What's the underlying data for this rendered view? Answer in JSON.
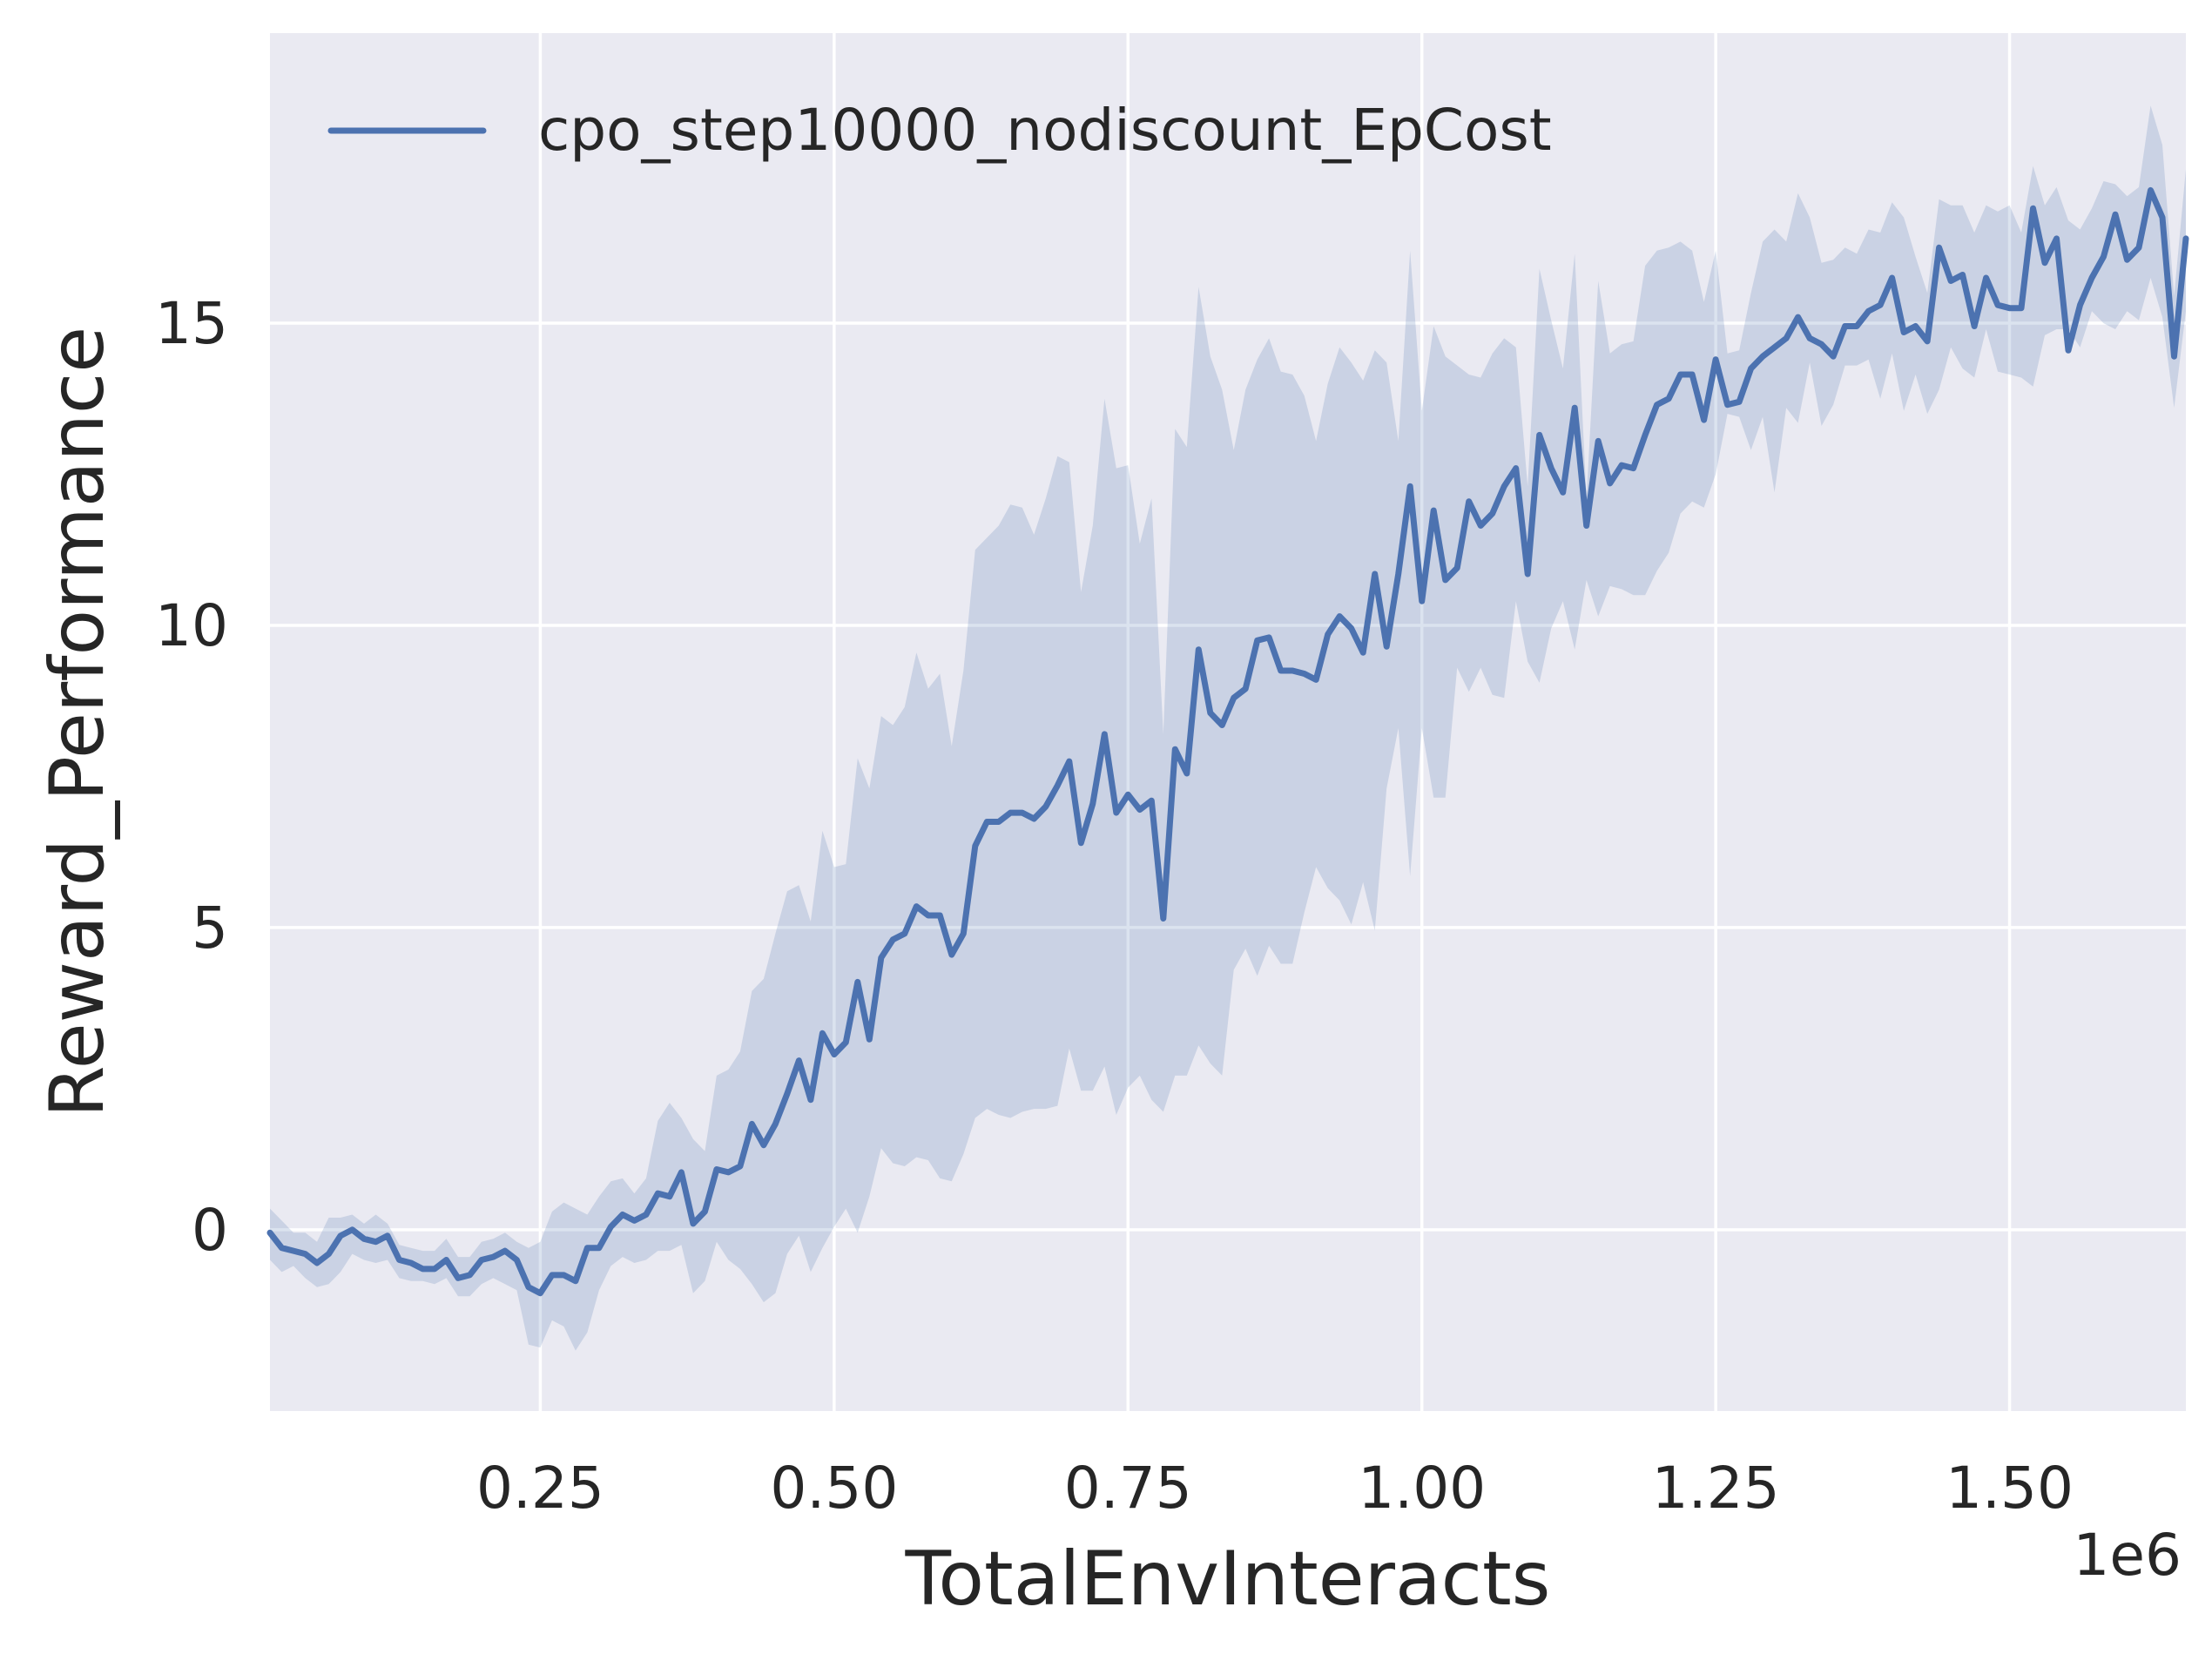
{
  "chart_data": {
    "type": "line",
    "title": "",
    "xlabel": "TotalEnvInteracts",
    "ylabel": "Reward_Performance",
    "x_offset_label": "1e6",
    "xlim": [
      0.02,
      1.65
    ],
    "ylim": [
      -3.0,
      19.8
    ],
    "x_ticks": [
      0.25,
      0.5,
      0.75,
      1.0,
      1.25,
      1.5
    ],
    "x_tick_labels": [
      "0.25",
      "0.50",
      "0.75",
      "1.00",
      "1.25",
      "1.50"
    ],
    "y_ticks": [
      0,
      5,
      10,
      15
    ],
    "y_tick_labels": [
      "0",
      "5",
      "10",
      "15"
    ],
    "grid": true,
    "legend_position": "top-left",
    "colors": {
      "plot_background": "#eaeaf2",
      "grid": "#ffffff",
      "line": "#4c72b0",
      "band": "#4c72b0"
    },
    "series": [
      {
        "name": "cpo_step10000_nodiscount_EpCost",
        "x": [
          0.02,
          0.03,
          0.04,
          0.05,
          0.06,
          0.07,
          0.08,
          0.09,
          0.1,
          0.11,
          0.12,
          0.13,
          0.14,
          0.15,
          0.16,
          0.17,
          0.18,
          0.19,
          0.2,
          0.21,
          0.22,
          0.23,
          0.24,
          0.25,
          0.26,
          0.27,
          0.28,
          0.29,
          0.3,
          0.31,
          0.32,
          0.33,
          0.34,
          0.35,
          0.36,
          0.37,
          0.38,
          0.39,
          0.4,
          0.41,
          0.42,
          0.43,
          0.44,
          0.45,
          0.46,
          0.47,
          0.48,
          0.49,
          0.5,
          0.51,
          0.52,
          0.53,
          0.54,
          0.55,
          0.56,
          0.57,
          0.58,
          0.59,
          0.6,
          0.61,
          0.62,
          0.63,
          0.64,
          0.65,
          0.66,
          0.67,
          0.68,
          0.69,
          0.7,
          0.71,
          0.72,
          0.73,
          0.74,
          0.75,
          0.76,
          0.77,
          0.78,
          0.79,
          0.8,
          0.81,
          0.82,
          0.83,
          0.84,
          0.85,
          0.86,
          0.87,
          0.88,
          0.89,
          0.9,
          0.91,
          0.92,
          0.93,
          0.94,
          0.95,
          0.96,
          0.97,
          0.98,
          0.99,
          1.0,
          1.01,
          1.02,
          1.03,
          1.04,
          1.05,
          1.06,
          1.07,
          1.08,
          1.09,
          1.1,
          1.11,
          1.12,
          1.13,
          1.14,
          1.15,
          1.16,
          1.17,
          1.18,
          1.19,
          1.2,
          1.21,
          1.22,
          1.23,
          1.24,
          1.25,
          1.26,
          1.27,
          1.28,
          1.29,
          1.3,
          1.31,
          1.32,
          1.33,
          1.34,
          1.35,
          1.36,
          1.37,
          1.38,
          1.39,
          1.4,
          1.41,
          1.42,
          1.43,
          1.44,
          1.45,
          1.46,
          1.47,
          1.48,
          1.49,
          1.5,
          1.51,
          1.52,
          1.53,
          1.54,
          1.55,
          1.56,
          1.57,
          1.58,
          1.59,
          1.6,
          1.61,
          1.62,
          1.63,
          1.64,
          1.65
        ],
        "y": [
          -0.05,
          -0.3,
          -0.35,
          -0.4,
          -0.55,
          -0.4,
          -0.1,
          0.0,
          -0.15,
          -0.2,
          -0.1,
          -0.5,
          -0.55,
          -0.65,
          -0.65,
          -0.5,
          -0.8,
          -0.75,
          -0.5,
          -0.45,
          -0.35,
          -0.5,
          -0.95,
          -1.05,
          -0.75,
          -0.75,
          -0.85,
          -0.3,
          -0.3,
          0.05,
          0.25,
          0.15,
          0.25,
          0.6,
          0.55,
          0.95,
          0.1,
          0.3,
          1.0,
          0.95,
          1.05,
          1.75,
          1.4,
          1.75,
          2.25,
          2.8,
          2.15,
          3.25,
          2.9,
          3.1,
          4.1,
          3.15,
          4.5,
          4.8,
          4.9,
          5.35,
          5.2,
          5.2,
          4.55,
          4.9,
          6.35,
          6.75,
          6.75,
          6.9,
          6.9,
          6.8,
          7.0,
          7.35,
          7.75,
          6.4,
          7.05,
          8.2,
          6.9,
          7.2,
          6.95,
          7.1,
          5.15,
          7.95,
          7.55,
          9.6,
          8.55,
          8.35,
          8.8,
          8.95,
          9.75,
          9.8,
          9.25,
          9.25,
          9.2,
          9.1,
          9.85,
          10.15,
          9.95,
          9.55,
          10.85,
          9.65,
          10.85,
          12.3,
          10.4,
          11.9,
          10.75,
          10.95,
          12.05,
          11.65,
          11.85,
          12.3,
          12.6,
          10.85,
          13.15,
          12.6,
          12.2,
          13.6,
          11.65,
          13.05,
          12.35,
          12.65,
          12.6,
          13.15,
          13.65,
          13.75,
          14.15,
          14.15,
          13.4,
          14.4,
          13.65,
          13.7,
          14.25,
          14.45,
          14.6,
          14.75,
          15.1,
          14.75,
          14.65,
          14.45,
          14.95,
          14.95,
          15.2,
          15.3,
          15.75,
          14.85,
          14.95,
          14.7,
          16.25,
          15.7,
          15.8,
          14.95,
          15.75,
          15.3,
          15.25,
          15.25,
          16.9,
          16.0,
          16.4,
          14.55,
          15.3,
          15.75,
          16.1,
          16.8,
          16.05,
          16.25,
          17.2,
          16.75,
          14.45,
          16.4
        ],
        "lower": [
          -0.5,
          -0.7,
          -0.6,
          -0.8,
          -0.95,
          -0.9,
          -0.7,
          -0.4,
          -0.5,
          -0.55,
          -0.5,
          -0.8,
          -0.85,
          -0.85,
          -0.9,
          -0.8,
          -1.1,
          -1.1,
          -0.9,
          -0.8,
          -0.9,
          -1.0,
          -1.9,
          -1.95,
          -1.5,
          -1.6,
          -2.0,
          -1.7,
          -1.0,
          -0.6,
          -0.45,
          -0.55,
          -0.5,
          -0.35,
          -0.35,
          -0.25,
          -1.05,
          -0.85,
          -0.2,
          -0.5,
          -0.65,
          -0.9,
          -1.2,
          -1.05,
          -0.4,
          -0.1,
          -0.7,
          -0.3,
          0.05,
          0.35,
          -0.05,
          0.55,
          1.35,
          1.1,
          1.05,
          1.2,
          1.15,
          0.85,
          0.8,
          1.25,
          1.85,
          2.0,
          1.9,
          1.85,
          1.95,
          2.0,
          2.0,
          2.05,
          3.0,
          2.3,
          2.3,
          2.7,
          1.9,
          2.35,
          2.55,
          2.15,
          1.95,
          2.55,
          2.55,
          3.05,
          2.75,
          2.55,
          4.3,
          4.65,
          4.2,
          4.7,
          4.4,
          4.4,
          5.25,
          6.0,
          5.65,
          5.45,
          5.05,
          5.75,
          4.95,
          7.3,
          8.3,
          5.85,
          8.3,
          7.15,
          7.15,
          9.3,
          8.9,
          9.3,
          8.85,
          8.8,
          10.4,
          9.4,
          9.05,
          9.95,
          10.4,
          9.6,
          10.75,
          10.15,
          10.65,
          10.6,
          10.5,
          10.5,
          10.9,
          11.2,
          11.85,
          12.05,
          11.95,
          12.5,
          13.5,
          13.45,
          12.9,
          13.45,
          12.2,
          13.6,
          13.35,
          14.35,
          13.3,
          13.65,
          14.3,
          14.3,
          14.4,
          13.75,
          14.5,
          13.55,
          14.15,
          13.5,
          13.9,
          14.6,
          14.25,
          14.1,
          14.9,
          14.2,
          14.15,
          14.1,
          13.95,
          14.8,
          14.9,
          14.9,
          14.6,
          15.2,
          15.0,
          14.9,
          15.2,
          15.05,
          15.75,
          15.1,
          13.6,
          15.2
        ],
        "upper": [
          0.35,
          0.15,
          -0.05,
          -0.05,
          -0.2,
          0.2,
          0.2,
          0.25,
          0.1,
          0.25,
          0.1,
          -0.25,
          -0.3,
          -0.35,
          -0.35,
          -0.15,
          -0.45,
          -0.45,
          -0.2,
          -0.15,
          -0.05,
          -0.2,
          -0.3,
          -0.2,
          0.3,
          0.45,
          0.35,
          0.25,
          0.55,
          0.8,
          0.85,
          0.6,
          0.85,
          1.8,
          2.1,
          1.85,
          1.5,
          1.3,
          2.55,
          2.65,
          2.95,
          3.95,
          4.15,
          4.9,
          5.6,
          5.7,
          5.1,
          6.6,
          6.0,
          6.05,
          7.8,
          7.3,
          8.5,
          8.35,
          8.65,
          9.55,
          8.95,
          9.2,
          8.0,
          9.25,
          11.25,
          11.45,
          11.65,
          12.0,
          11.95,
          11.5,
          12.1,
          12.8,
          12.7,
          10.55,
          11.65,
          13.75,
          12.6,
          12.65,
          11.35,
          12.1,
          8.2,
          13.25,
          12.95,
          15.6,
          14.45,
          13.9,
          12.9,
          13.9,
          14.4,
          14.75,
          14.2,
          14.15,
          13.8,
          13.05,
          14.0,
          14.6,
          14.35,
          14.05,
          14.55,
          14.35,
          13.05,
          16.2,
          13.55,
          14.95,
          14.45,
          14.3,
          14.15,
          14.1,
          14.5,
          14.75,
          14.6,
          12.3,
          15.9,
          15.05,
          14.25,
          16.15,
          12.1,
          15.7,
          14.5,
          14.65,
          14.7,
          15.95,
          16.2,
          16.25,
          16.35,
          16.2,
          15.35,
          16.2,
          14.5,
          14.55,
          15.5,
          16.35,
          16.55,
          16.35,
          17.15,
          16.75,
          16.0,
          16.05,
          16.25,
          16.15,
          16.55,
          16.5,
          17.0,
          16.75,
          16.1,
          15.5,
          17.05,
          16.95,
          16.95,
          16.5,
          16.95,
          16.85,
          16.95,
          16.5,
          17.6,
          16.95,
          17.25,
          16.7,
          16.55,
          16.9,
          17.35,
          17.3,
          17.1,
          17.25,
          18.6,
          17.95,
          15.45,
          17.55
        ]
      }
    ]
  }
}
